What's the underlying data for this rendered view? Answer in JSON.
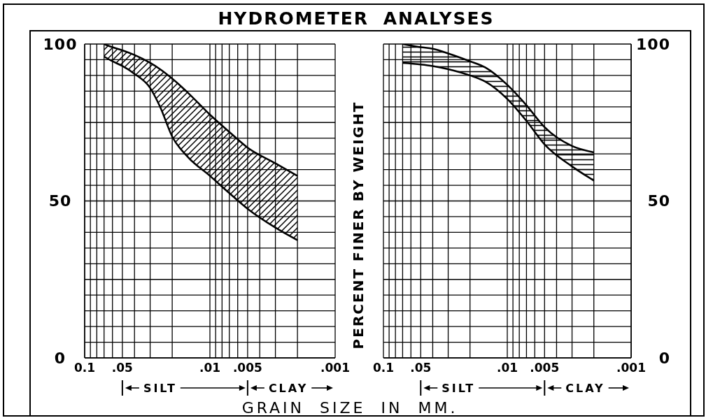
{
  "chart_data": [
    {
      "type": "line",
      "title": "HYDROMETER ANALYSES",
      "xlabel": "GRAIN SIZE IN MM.",
      "x": [
        0.07,
        0.06,
        0.05,
        0.04,
        0.03,
        0.025,
        0.02,
        0.015,
        0.01,
        0.007,
        0.005,
        0.003,
        0.002
      ],
      "series": [
        {
          "color": "#000000",
          "values": [
            100,
            99,
            98,
            96.5,
            94,
            92,
            89,
            84.5,
            77.5,
            72,
            67,
            62,
            58
          ],
          "lower": [
            96,
            94.5,
            93,
            90.5,
            86,
            80,
            70.5,
            64,
            58,
            52.5,
            47.5,
            41.5,
            37.5
          ],
          "upper": [
            100,
            99,
            98,
            96.5,
            94,
            92,
            89,
            84.5,
            77.5,
            72,
            67,
            62,
            58
          ]
        },
        {
          "color": "#000000",
          "values": [
            96,
            94.5,
            93,
            90.5,
            86,
            80,
            70.5,
            64,
            58,
            52.5,
            47.5,
            41.5,
            37.5
          ]
        }
      ],
      "xlim": [
        0.1,
        0.001
      ],
      "ylim": [
        0,
        100
      ],
      "log": "x",
      "grid": true,
      "xticks": [
        0.1,
        {
          "value": 0.09,
          "label": null
        },
        {
          "value": 0.08,
          "label": null
        },
        {
          "value": 0.07,
          "label": null
        },
        {
          "value": 0.06,
          "label": null
        },
        {
          "value": 0.05,
          "label": ".05"
        },
        {
          "value": 0.04,
          "label": null
        },
        {
          "value": 0.03,
          "label": null
        },
        {
          "value": 0.02,
          "label": null
        },
        {
          "value": 0.01,
          "label": ".01"
        },
        {
          "value": 0.009,
          "label": null
        },
        {
          "value": 0.008,
          "label": null
        },
        {
          "value": 0.007,
          "label": null
        },
        {
          "value": 0.006,
          "label": null
        },
        {
          "value": 0.005,
          "label": ".005"
        },
        {
          "value": 0.004,
          "label": null
        },
        {
          "value": 0.003,
          "label": null
        },
        {
          "value": 0.002,
          "label": null
        },
        {
          "value": 0.001,
          "label": ".001"
        }
      ],
      "yticks": [
        0,
        {
          "value": 5,
          "label": null
        },
        {
          "value": 10,
          "label": null
        },
        {
          "value": 15,
          "label": null
        },
        {
          "value": 20,
          "label": null
        },
        {
          "value": 25,
          "label": null
        },
        {
          "value": 30,
          "label": null
        },
        {
          "value": 35,
          "label": null
        },
        {
          "value": 40,
          "label": null
        },
        {
          "value": 45,
          "label": null
        },
        50,
        {
          "value": 55,
          "label": null
        },
        {
          "value": 60,
          "label": null
        },
        {
          "value": 65,
          "label": null
        },
        {
          "value": 70,
          "label": null
        },
        {
          "value": 75,
          "label": null
        },
        {
          "value": 80,
          "label": null
        },
        {
          "value": 85,
          "label": null
        },
        {
          "value": 90,
          "label": null
        },
        {
          "value": 95,
          "label": null
        },
        100
      ],
      "annotations": [
        "SILT",
        "CLAY"
      ]
    },
    {
      "type": "line",
      "ylabel": "PERCENT FINER BY WEIGHT",
      "x": [
        0.07,
        0.05,
        0.04,
        0.03,
        0.02,
        0.015,
        0.01,
        0.007,
        0.005,
        0.003,
        0.002
      ],
      "series": [
        {
          "color": "#000000",
          "values": [
            100,
            99,
            98.5,
            97,
            94.5,
            92.5,
            87,
            80.5,
            73.5,
            67.5,
            65.5
          ],
          "lower": [
            94,
            93.5,
            93,
            92,
            90,
            88,
            82.5,
            75.5,
            68,
            61,
            56.5
          ],
          "upper": [
            100,
            99,
            98.5,
            97,
            94.5,
            92.5,
            87,
            80.5,
            73.5,
            67.5,
            65.5
          ]
        },
        {
          "color": "#000000",
          "values": [
            94,
            93.5,
            93,
            92,
            90,
            88,
            82.5,
            75.5,
            68,
            61,
            56.5
          ]
        }
      ],
      "xlim": [
        0.1,
        0.001
      ],
      "ylim": [
        0,
        100
      ],
      "log": "x",
      "grid": true,
      "xticks": [
        0.1,
        {
          "value": 0.09,
          "label": null
        },
        {
          "value": 0.08,
          "label": null
        },
        {
          "value": 0.07,
          "label": null
        },
        {
          "value": 0.06,
          "label": null
        },
        {
          "value": 0.05,
          "label": ".05"
        },
        {
          "value": 0.04,
          "label": null
        },
        {
          "value": 0.03,
          "label": null
        },
        {
          "value": 0.02,
          "label": null
        },
        {
          "value": 0.01,
          "label": ".01"
        },
        {
          "value": 0.009,
          "label": null
        },
        {
          "value": 0.008,
          "label": null
        },
        {
          "value": 0.007,
          "label": null
        },
        {
          "value": 0.006,
          "label": null
        },
        {
          "value": 0.005,
          "label": ".005"
        },
        {
          "value": 0.004,
          "label": null
        },
        {
          "value": 0.003,
          "label": null
        },
        {
          "value": 0.002,
          "label": null
        },
        {
          "value": 0.001,
          "label": ".001"
        }
      ],
      "yticks": [
        0,
        {
          "value": 5,
          "label": null
        },
        {
          "value": 10,
          "label": null
        },
        {
          "value": 15,
          "label": null
        },
        {
          "value": 20,
          "label": null
        },
        {
          "value": 25,
          "label": null
        },
        {
          "value": 30,
          "label": null
        },
        {
          "value": 35,
          "label": null
        },
        {
          "value": 40,
          "label": null
        },
        {
          "value": 45,
          "label": null
        },
        50,
        {
          "value": 55,
          "label": null
        },
        {
          "value": 60,
          "label": null
        },
        {
          "value": 65,
          "label": null
        },
        {
          "value": 70,
          "label": null
        },
        {
          "value": 75,
          "label": null
        },
        {
          "value": 80,
          "label": null
        },
        {
          "value": 85,
          "label": null
        },
        {
          "value": 90,
          "label": null
        },
        {
          "value": 95,
          "label": null
        },
        100
      ],
      "annotations": [
        "SILT",
        "CLAY"
      ]
    }
  ]
}
